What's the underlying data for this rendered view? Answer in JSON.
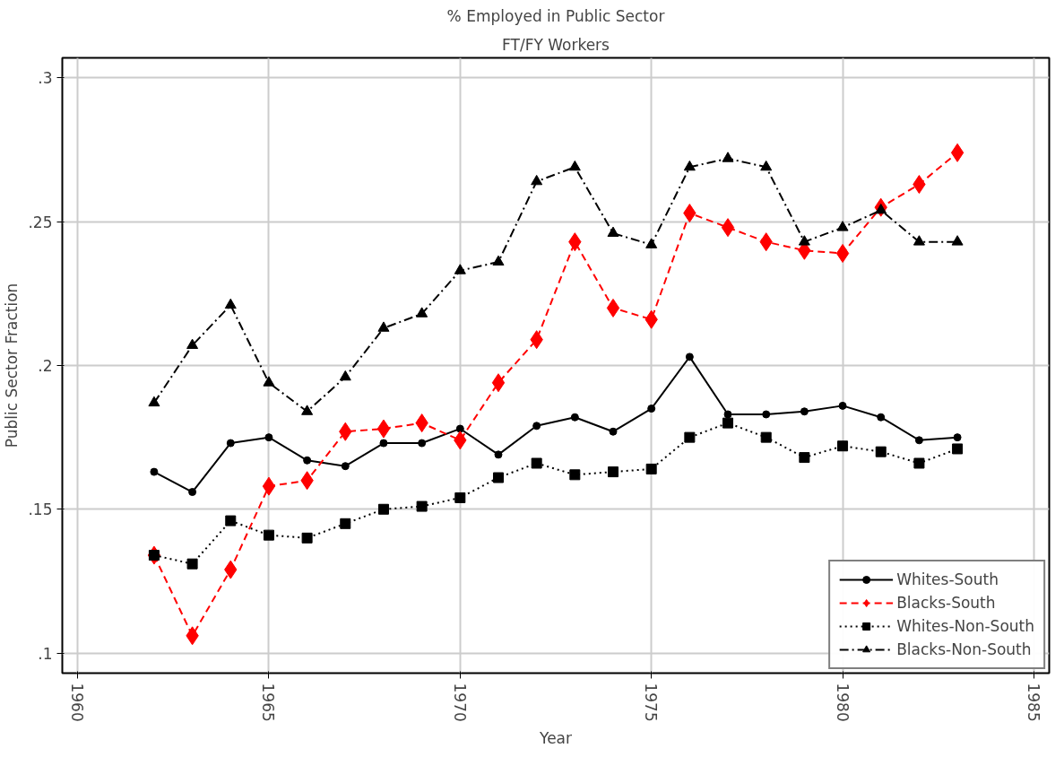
{
  "chart_data": {
    "type": "line",
    "title": "% Employed in Public Sector",
    "subtitle": "FT/FY Workers",
    "xlabel": "Year",
    "ylabel": "Public Sector Fraction",
    "x": [
      1962,
      1963,
      1964,
      1965,
      1966,
      1967,
      1968,
      1969,
      1970,
      1971,
      1972,
      1973,
      1974,
      1975,
      1976,
      1977,
      1978,
      1979,
      1980,
      1981,
      1982,
      1983
    ],
    "series": [
      {
        "name": "Whites-South",
        "color": "#000000",
        "marker": "circle",
        "line_style": "solid",
        "values": [
          0.163,
          0.156,
          0.173,
          0.175,
          0.167,
          0.165,
          0.173,
          0.173,
          0.178,
          0.169,
          0.179,
          0.182,
          0.177,
          0.185,
          0.203,
          0.183,
          0.183,
          0.184,
          0.186,
          0.182,
          0.174,
          0.175
        ]
      },
      {
        "name": "Blacks-South",
        "color": "#ff0000",
        "marker": "diamond",
        "line_style": "dashed",
        "values": [
          0.134,
          0.106,
          0.129,
          0.158,
          0.16,
          0.177,
          0.178,
          0.18,
          0.174,
          0.194,
          0.209,
          0.243,
          0.22,
          0.216,
          0.253,
          0.248,
          0.243,
          0.24,
          0.239,
          0.255,
          0.263,
          0.274
        ]
      },
      {
        "name": "Whites-Non-South",
        "color": "#000000",
        "marker": "square",
        "line_style": "dotted",
        "values": [
          0.134,
          0.131,
          0.146,
          0.141,
          0.14,
          0.145,
          0.15,
          0.151,
          0.154,
          0.161,
          0.166,
          0.162,
          0.163,
          0.164,
          0.175,
          0.18,
          0.175,
          0.168,
          0.172,
          0.17,
          0.166,
          0.171
        ]
      },
      {
        "name": "Blacks-Non-South",
        "color": "#000000",
        "marker": "triangle",
        "line_style": "dashdot",
        "values": [
          0.187,
          0.207,
          0.221,
          0.194,
          0.184,
          0.196,
          0.213,
          0.218,
          0.233,
          0.236,
          0.264,
          0.269,
          0.246,
          0.242,
          0.269,
          0.272,
          0.269,
          0.243,
          0.248,
          0.254,
          0.243,
          0.243
        ]
      }
    ],
    "xlim": [
      1959.6,
      1985.4
    ],
    "xticks": [
      1960,
      1965,
      1970,
      1975,
      1980,
      1985
    ],
    "ylim": [
      0.093,
      0.307
    ],
    "yticks": [
      {
        "value": 0.1,
        "label": ".1"
      },
      {
        "value": 0.15,
        "label": ".15"
      },
      {
        "value": 0.2,
        "label": ".2"
      },
      {
        "value": 0.25,
        "label": ".25"
      },
      {
        "value": 0.3,
        "label": ".3"
      }
    ],
    "grid": true,
    "legend": "bottom right"
  }
}
